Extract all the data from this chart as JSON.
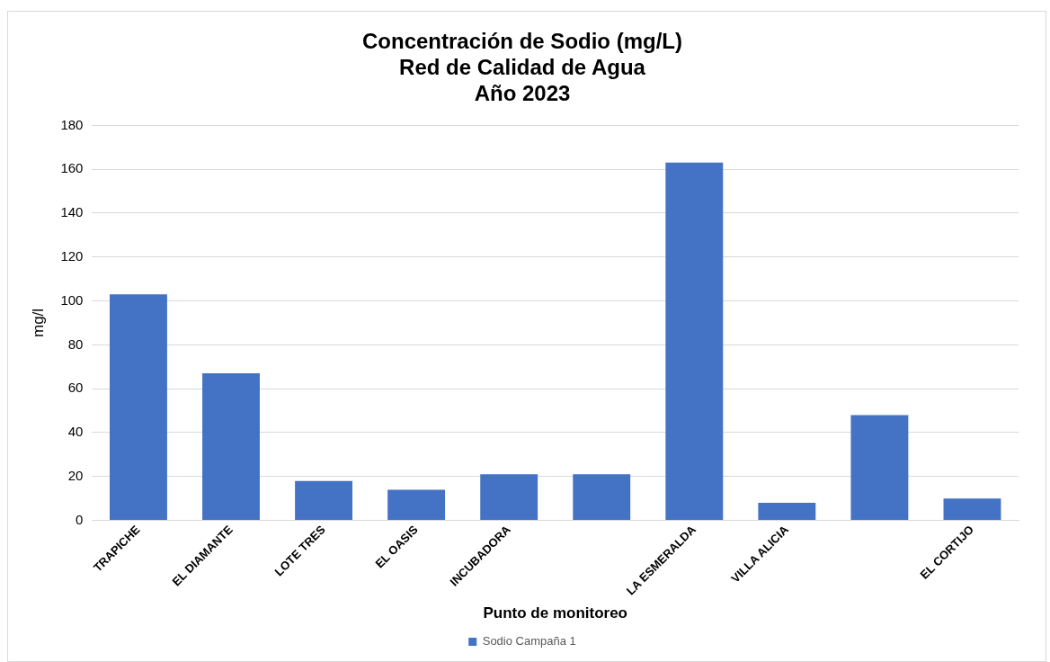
{
  "chart_data": {
    "type": "bar",
    "title": "Concentración de Sodio (mg/L)\nRed de Calidad de Agua\nAño 2023",
    "xlabel": "Punto de monitoreo",
    "ylabel": "mg/l",
    "categories": [
      "TRAPICHE",
      "EL DIAMANTE",
      "LOTE TRES",
      "EL OASIS",
      "INCUBADORA",
      null,
      "LA ESMERALDA",
      "VILLA ALICIA",
      null,
      "EL CORTIJO"
    ],
    "series": [
      {
        "name": "Sodio Campaña 1",
        "color": "#4472c4",
        "values": [
          103,
          67,
          18,
          14,
          21,
          21,
          163,
          8,
          48,
          10
        ]
      }
    ],
    "ylim": [
      0,
      180
    ],
    "yticks": [
      0,
      20,
      40,
      60,
      80,
      100,
      120,
      140,
      160,
      180
    ],
    "grid": "y",
    "legend": "bottom"
  }
}
